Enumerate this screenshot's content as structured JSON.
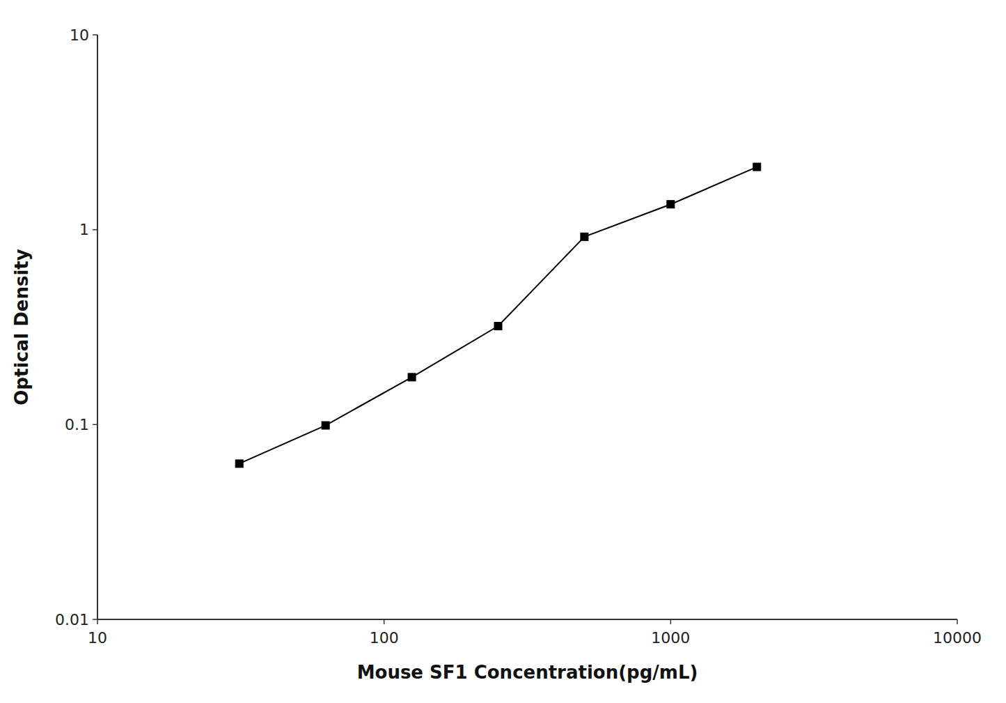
{
  "chart_data": {
    "type": "line",
    "x": [
      31.25,
      62.5,
      125,
      250,
      500,
      1000,
      2000
    ],
    "values": [
      0.063,
      0.099,
      0.175,
      0.32,
      0.92,
      1.35,
      2.1
    ],
    "xlabel": "Mouse SF1 Concentration(pg/mL)",
    "ylabel": "Optical Density",
    "xlim": [
      10,
      10000
    ],
    "ylim": [
      0.01,
      10
    ],
    "xticks": [
      10,
      100,
      1000,
      10000
    ],
    "yticks": [
      0.01,
      0.1,
      1,
      10
    ],
    "log": true,
    "color": "#000000",
    "marker": "square"
  }
}
